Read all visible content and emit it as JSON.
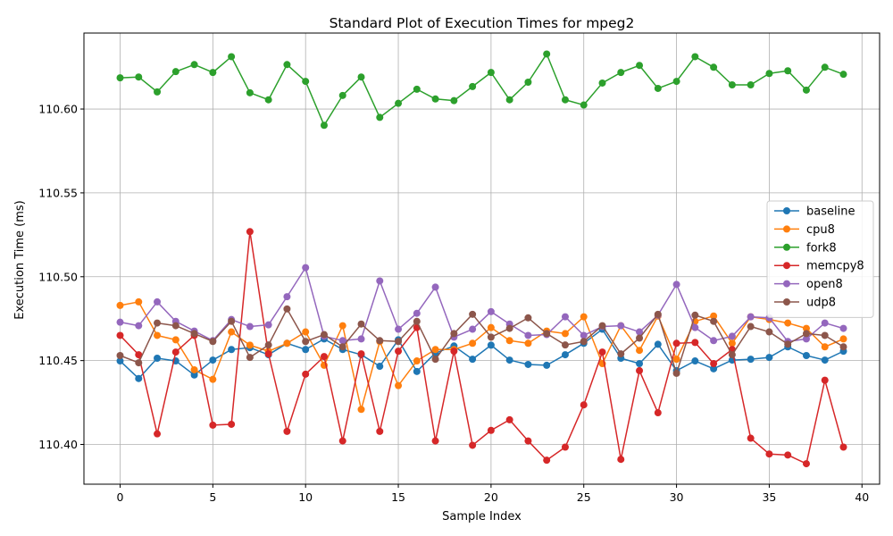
{
  "chart_data": {
    "type": "line",
    "title": "Standard Plot of Execution Times for mpeg2",
    "xlabel": "Sample Index",
    "ylabel": "Execution Time (ms)",
    "xlim": [
      -1.95,
      40.95
    ],
    "ylim": [
      110.3763,
      110.6453
    ],
    "xticks": [
      0,
      5,
      10,
      15,
      20,
      25,
      30,
      35,
      40
    ],
    "yticks": [
      110.4,
      110.45,
      110.5,
      110.55,
      110.6
    ],
    "ytick_labels": [
      "110.40",
      "110.45",
      "110.50",
      "110.55",
      "110.60"
    ],
    "grid": true,
    "legend_position": "center-right",
    "x": [
      0,
      1,
      2,
      3,
      4,
      5,
      6,
      7,
      8,
      9,
      10,
      11,
      12,
      13,
      14,
      15,
      16,
      17,
      18,
      19,
      20,
      21,
      22,
      23,
      24,
      25,
      26,
      27,
      28,
      29,
      30,
      31,
      32,
      33,
      34,
      35,
      36,
      37,
      38,
      39
    ],
    "series": [
      {
        "name": "baseline",
        "color": "#1f77b4",
        "values": [
          110.4498,
          110.4393,
          110.4514,
          110.4498,
          110.4414,
          110.4503,
          110.4566,
          110.4577,
          110.4535,
          110.4603,
          110.4566,
          110.4629,
          110.4566,
          110.4535,
          110.4466,
          110.4624,
          110.4435,
          110.4545,
          110.4587,
          110.4508,
          110.4592,
          110.4503,
          110.4477,
          110.4472,
          110.4535,
          110.4603,
          110.4687,
          110.4514,
          110.4482,
          110.4597,
          110.444,
          110.4498,
          110.4451,
          110.4503,
          110.4508,
          110.4519,
          110.4582,
          110.453,
          110.4503,
          110.4556
        ]
      },
      {
        "name": "cpu8",
        "color": "#ff7f0e",
        "values": [
          110.4829,
          110.485,
          110.465,
          110.4624,
          110.4445,
          110.4388,
          110.4671,
          110.4592,
          110.4556,
          110.4603,
          110.4671,
          110.4472,
          110.4708,
          110.4209,
          110.4614,
          110.4351,
          110.4498,
          110.4566,
          110.4566,
          110.4603,
          110.4697,
          110.4619,
          110.4603,
          110.4676,
          110.4661,
          110.4761,
          110.4482,
          110.4708,
          110.4561,
          110.4766,
          110.4508,
          110.4734,
          110.4766,
          110.4603,
          110.4761,
          110.4745,
          110.4724,
          110.4692,
          110.4582,
          110.4629
        ]
      },
      {
        "name": "fork8",
        "color": "#2ca02c",
        "values": [
          110.6186,
          110.6191,
          110.6102,
          110.6223,
          110.6265,
          110.6218,
          110.6312,
          110.6097,
          110.6055,
          110.6265,
          110.6165,
          110.5903,
          110.6081,
          110.6191,
          110.595,
          110.6034,
          110.6118,
          110.606,
          110.605,
          110.6134,
          110.6218,
          110.6055,
          110.616,
          110.6328,
          110.6055,
          110.6024,
          110.6155,
          110.6218,
          110.626,
          110.6123,
          110.6165,
          110.6312,
          110.6249,
          110.6144,
          110.6144,
          110.6212,
          110.6228,
          110.6113,
          110.6249,
          110.6207
        ]
      },
      {
        "name": "memcpy8",
        "color": "#d62728",
        "values": [
          110.465,
          110.4535,
          110.4063,
          110.4551,
          110.465,
          110.4115,
          110.412,
          110.5269,
          110.454,
          110.4078,
          110.4419,
          110.4524,
          110.4021,
          110.454,
          110.4078,
          110.4556,
          110.4697,
          110.4021,
          110.4556,
          110.3995,
          110.4084,
          110.4147,
          110.4021,
          110.3906,
          110.3984,
          110.4236,
          110.4551,
          110.3911,
          110.444,
          110.4189,
          110.4603,
          110.4608,
          110.4482,
          110.4566,
          110.4037,
          110.3943,
          110.3937,
          110.3885,
          110.4383,
          110.3984
        ]
      },
      {
        "name": "open8",
        "color": "#9467bd",
        "values": [
          110.4729,
          110.4708,
          110.485,
          110.4734,
          110.4676,
          110.4619,
          110.4745,
          110.4703,
          110.4713,
          110.4881,
          110.5054,
          110.4645,
          110.4619,
          110.4629,
          110.4975,
          110.4687,
          110.4782,
          110.4938,
          110.464,
          110.4687,
          110.4792,
          110.4718,
          110.465,
          110.4655,
          110.4761,
          110.465,
          110.4703,
          110.4708,
          110.4671,
          110.4771,
          110.4954,
          110.4697,
          110.4619,
          110.4645,
          110.4761,
          110.4755,
          110.4614,
          110.4629,
          110.4724,
          110.4692
        ]
      },
      {
        "name": "udp8",
        "color": "#8c564b",
        "values": [
          110.453,
          110.4487,
          110.4724,
          110.4708,
          110.4661,
          110.4614,
          110.4734,
          110.4519,
          110.4593,
          110.4808,
          110.4614,
          110.4655,
          110.4582,
          110.4718,
          110.4619,
          110.4614,
          110.4734,
          110.4508,
          110.4661,
          110.4776,
          110.464,
          110.4692,
          110.4755,
          110.4661,
          110.4593,
          110.4614,
          110.4708,
          110.454,
          110.4634,
          110.4776,
          110.4424,
          110.4771,
          110.4734,
          110.4535,
          110.4703,
          110.4671,
          110.4598,
          110.4661,
          110.465,
          110.4582
        ]
      }
    ]
  }
}
